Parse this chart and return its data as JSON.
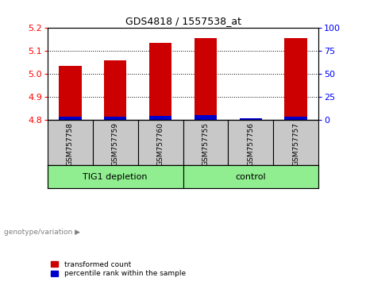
{
  "title": "GDS4818 / 1557538_at",
  "samples": [
    "GSM757758",
    "GSM757759",
    "GSM757760",
    "GSM757755",
    "GSM757756",
    "GSM757757"
  ],
  "transformed_counts": [
    5.035,
    5.06,
    5.135,
    5.155,
    4.805,
    5.155
  ],
  "percentile_ranks": [
    8,
    9,
    12,
    13,
    4,
    10
  ],
  "groups": [
    {
      "label": "TIG1 depletion",
      "indices": [
        0,
        1,
        2
      ],
      "color": "#90EE90"
    },
    {
      "label": "control",
      "indices": [
        3,
        4,
        5
      ],
      "color": "#90EE90"
    }
  ],
  "ylim_left": [
    4.8,
    5.2
  ],
  "ylim_right": [
    0,
    100
  ],
  "yticks_left": [
    4.8,
    4.9,
    5.0,
    5.1,
    5.2
  ],
  "yticks_right": [
    0,
    25,
    50,
    75,
    100
  ],
  "bar_color_red": "#CC0000",
  "bar_color_blue": "#0000CC",
  "bar_width": 0.5,
  "background_plot": "#FFFFFF",
  "background_xticklabel": "#C8C8C8",
  "legend_red_label": "transformed count",
  "legend_blue_label": "percentile rank within the sample",
  "genotype_label": "genotype/variation"
}
